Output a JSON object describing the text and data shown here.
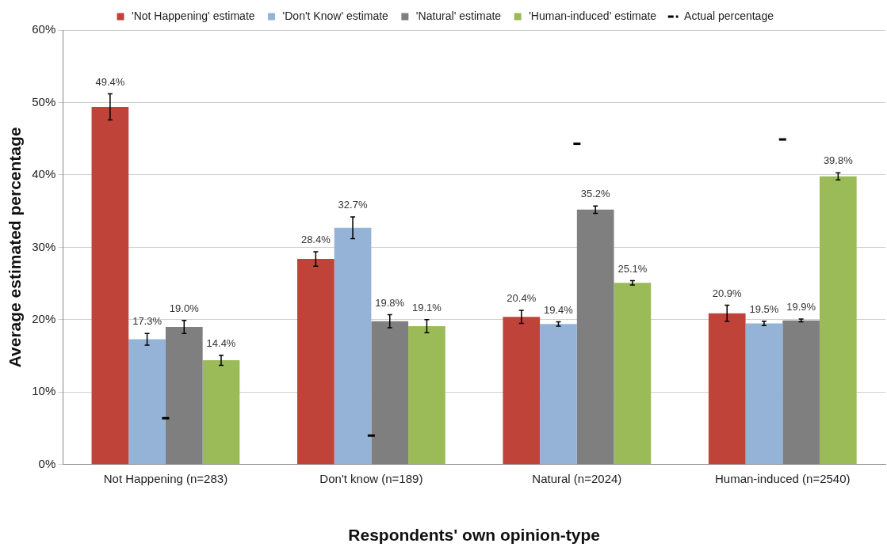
{
  "chart_data": {
    "type": "bar",
    "xlabel": "Respondents' own opinion-type",
    "ylabel": "Average estimated percentage",
    "categories": [
      "Not Happening (n=283)",
      "Don't know (n=189)",
      "Natural (n=2024)",
      "Human-induced (n=2540)"
    ],
    "series": [
      {
        "name": "'Not Happening' estimate",
        "color": "#c0433a",
        "values": [
          49.4,
          28.4,
          20.4,
          20.9
        ],
        "errors": [
          1.8,
          1.0,
          0.9,
          1.1
        ],
        "value_labels": [
          "49.4%",
          "28.4%",
          "20.4%",
          "20.9%"
        ]
      },
      {
        "name": "'Don't Know' estimate",
        "color": "#95b3d7",
        "values": [
          17.3,
          32.7,
          19.4,
          19.5
        ],
        "errors": [
          0.8,
          1.5,
          0.3,
          0.3
        ],
        "value_labels": [
          "17.3%",
          "32.7%",
          "19.4%",
          "19.5%"
        ]
      },
      {
        "name": "'Natural' estimate",
        "color": "#7f7f7f",
        "values": [
          19.0,
          19.8,
          35.2,
          19.9
        ],
        "errors": [
          0.9,
          0.9,
          0.5,
          0.2
        ],
        "value_labels": [
          "19.0%",
          "19.8%",
          "35.2%",
          "19.9%"
        ]
      },
      {
        "name": "'Human-induced' estimate",
        "color": "#9bbb59",
        "values": [
          14.4,
          19.1,
          25.1,
          39.8
        ],
        "errors": [
          0.7,
          0.9,
          0.3,
          0.5
        ],
        "value_labels": [
          "14.4%",
          "19.1%",
          "25.1%",
          "39.8%"
        ]
      },
      {
        "name": "Actual percentage",
        "type": "scatter",
        "color": "#000000",
        "line_style": "dashed",
        "x": [
          "Not Happening (n=283)",
          "Don't know (n=189)",
          "Natural (n=2024)",
          "Human-induced (n=2540)"
        ],
        "values": [
          6.4,
          4.0,
          44.3,
          44.9
        ]
      }
    ],
    "ylim": [
      0,
      60
    ],
    "yticks": [
      {
        "value": 0,
        "label": "0%"
      },
      {
        "value": 10,
        "label": "10%"
      },
      {
        "value": 20,
        "label": "20%"
      },
      {
        "value": 30,
        "label": "30%"
      },
      {
        "value": 40,
        "label": "40%"
      },
      {
        "value": 50,
        "label": "50%"
      },
      {
        "value": 60,
        "label": "60%"
      }
    ],
    "grid": "y",
    "legend": "top"
  }
}
